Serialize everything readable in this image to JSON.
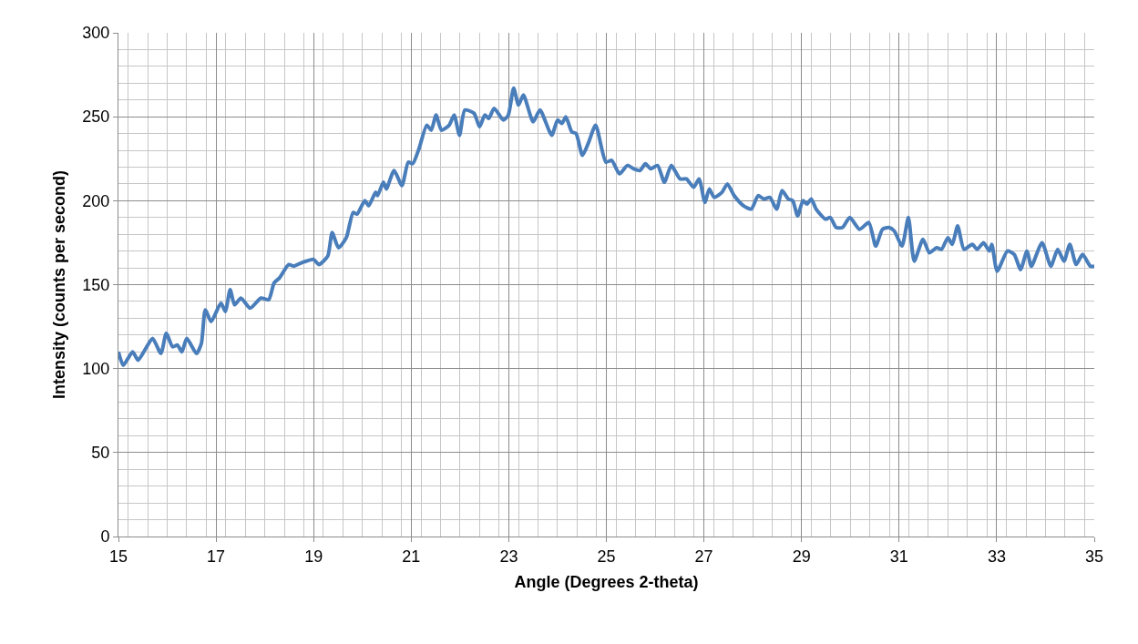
{
  "chart_data": {
    "type": "line",
    "xlabel": "Angle (Degrees 2-theta)",
    "ylabel": "Intensity (counts per second)",
    "xlim": [
      15,
      35
    ],
    "xticks": [
      15,
      17,
      19,
      21,
      23,
      25,
      27,
      29,
      31,
      33,
      35
    ],
    "ylim": [
      0,
      300
    ],
    "yticks": [
      0,
      50,
      100,
      150,
      200,
      250,
      300
    ],
    "grid": true,
    "marker": "none",
    "line_style": "solid",
    "series": [
      {
        "color": "#4a7ebb",
        "x": [
          15.0,
          15.1,
          15.29,
          15.4,
          15.54,
          15.7,
          15.87,
          15.98,
          16.11,
          16.21,
          16.3,
          16.4,
          16.6,
          16.7,
          16.78,
          16.9,
          17.1,
          17.19,
          17.29,
          17.38,
          17.51,
          17.7,
          17.92,
          18.08,
          18.19,
          18.3,
          18.49,
          18.59,
          18.75,
          19.0,
          19.11,
          19.29,
          19.38,
          19.51,
          19.67,
          19.81,
          19.89,
          20.05,
          20.13,
          20.27,
          20.31,
          20.43,
          20.49,
          20.65,
          20.81,
          20.94,
          21.03,
          21.16,
          21.32,
          21.41,
          21.51,
          21.62,
          21.78,
          21.88,
          21.99,
          22.1,
          22.29,
          22.4,
          22.51,
          22.59,
          22.7,
          22.89,
          22.99,
          23.1,
          23.2,
          23.3,
          23.5,
          23.64,
          23.88,
          24.0,
          24.09,
          24.17,
          24.29,
          24.38,
          24.51,
          24.64,
          24.78,
          24.99,
          25.11,
          25.27,
          25.43,
          25.56,
          25.69,
          25.8,
          25.91,
          26.05,
          26.19,
          26.33,
          26.51,
          26.64,
          26.79,
          26.9,
          27.02,
          27.11,
          27.21,
          27.37,
          27.48,
          27.62,
          27.81,
          27.97,
          28.11,
          28.23,
          28.35,
          28.49,
          28.6,
          28.73,
          28.82,
          28.92,
          29.03,
          29.11,
          29.2,
          29.3,
          29.49,
          29.59,
          29.71,
          29.84,
          29.99,
          30.19,
          30.38,
          30.52,
          30.66,
          30.79,
          30.9,
          31.06,
          31.19,
          31.31,
          31.49,
          31.62,
          31.77,
          31.87,
          32.0,
          32.09,
          32.2,
          32.33,
          32.5,
          32.6,
          32.73,
          32.85,
          32.9,
          33.01,
          33.22,
          33.36,
          33.49,
          33.62,
          33.71,
          33.93,
          34.11,
          34.25,
          34.38,
          34.5,
          34.63,
          34.76,
          34.92,
          35.0
        ],
        "values": [
          110,
          102,
          110,
          105,
          111,
          118,
          109,
          121,
          113,
          114,
          110,
          118,
          109,
          115,
          135,
          128,
          139,
          134,
          147,
          138,
          142,
          136,
          142,
          141,
          151,
          154,
          162,
          161,
          163,
          165,
          162,
          167,
          181,
          172,
          178,
          193,
          192,
          200,
          197,
          205,
          203,
          211,
          207,
          218,
          209,
          223,
          222,
          231,
          245,
          242,
          251,
          242,
          245,
          251,
          239,
          254,
          252,
          244,
          251,
          249,
          255,
          248,
          251,
          267,
          257,
          263,
          247,
          254,
          239,
          248,
          246,
          250,
          241,
          240,
          227,
          235,
          245,
          223,
          224,
          216,
          221,
          219,
          218,
          222,
          219,
          221,
          211,
          221,
          213,
          213,
          208,
          213,
          199,
          207,
          202,
          205,
          210,
          203,
          197,
          195,
          203,
          201,
          202,
          195,
          206,
          201,
          200,
          191,
          200,
          198,
          201,
          195,
          189,
          190,
          184,
          184,
          190,
          183,
          187,
          173,
          183,
          184,
          182,
          173,
          190,
          164,
          177,
          169,
          172,
          171,
          178,
          174,
          185,
          171,
          174,
          171,
          175,
          170,
          174,
          158,
          170,
          168,
          159,
          170,
          161,
          175,
          161,
          171,
          164,
          174,
          162,
          168,
          161,
          161
        ]
      }
    ]
  }
}
